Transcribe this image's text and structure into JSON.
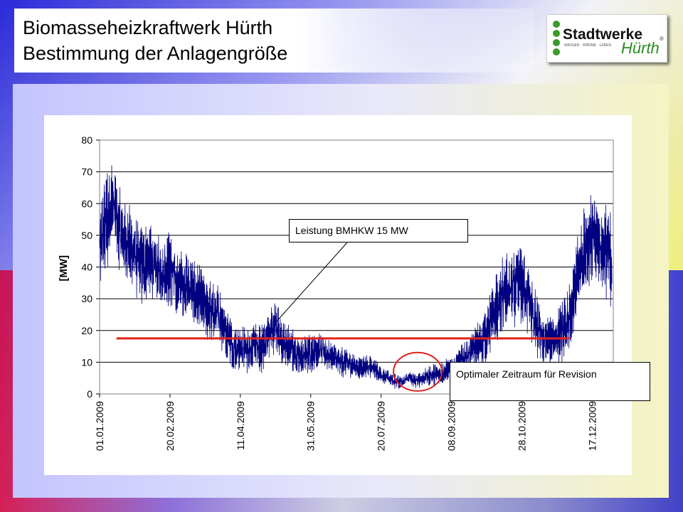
{
  "header": {
    "title_line1": "Biomasseheizkraftwerk Hürth",
    "title_line2": "Bestimmung der Anlagengröße"
  },
  "logo": {
    "text_main": "Stadtwerke",
    "text_script": "Hürth",
    "tagline": "WASSER · WÄRME · LEBEN",
    "registered": "®",
    "colors": {
      "green": "#3a9a2a",
      "dark": "#111111",
      "script": "#2a8a1e"
    }
  },
  "chart_data": {
    "type": "line",
    "ylabel": "[MW]",
    "ylim": [
      0,
      80
    ],
    "yticks": [
      "0",
      "10",
      "20",
      "30",
      "40",
      "50",
      "60",
      "70",
      "80"
    ],
    "xticks": [
      "01.01.2009",
      "20.02.2009",
      "11.04.2009",
      "31.05.2009",
      "20.07.2009",
      "08.09.2009",
      "28.10.2009",
      "17.12.2009"
    ],
    "grid": true,
    "series": [
      {
        "color": "#000080",
        "points": [
          [
            0,
            45
          ],
          [
            5,
            55
          ],
          [
            10,
            60
          ],
          [
            15,
            50
          ],
          [
            20,
            48
          ],
          [
            25,
            44
          ],
          [
            30,
            40
          ],
          [
            35,
            42
          ],
          [
            40,
            39
          ],
          [
            45,
            38
          ],
          [
            50,
            40
          ],
          [
            55,
            35
          ],
          [
            60,
            34
          ],
          [
            65,
            33
          ],
          [
            70,
            30
          ],
          [
            75,
            27
          ],
          [
            80,
            26
          ],
          [
            85,
            25
          ],
          [
            90,
            20
          ],
          [
            95,
            15
          ],
          [
            100,
            14
          ],
          [
            105,
            14
          ],
          [
            110,
            15
          ],
          [
            115,
            14
          ],
          [
            120,
            19
          ],
          [
            125,
            22
          ],
          [
            130,
            16
          ],
          [
            135,
            14
          ],
          [
            140,
            13
          ],
          [
            145,
            12
          ],
          [
            150,
            13
          ],
          [
            155,
            14
          ],
          [
            160,
            13
          ],
          [
            165,
            12
          ],
          [
            170,
            10
          ],
          [
            175,
            10
          ],
          [
            180,
            9
          ],
          [
            185,
            8
          ],
          [
            190,
            9
          ],
          [
            195,
            8
          ],
          [
            200,
            6
          ],
          [
            205,
            5
          ],
          [
            210,
            4
          ],
          [
            215,
            4
          ],
          [
            220,
            5
          ],
          [
            225,
            4
          ],
          [
            230,
            5
          ],
          [
            235,
            6
          ],
          [
            240,
            6
          ],
          [
            245,
            7
          ],
          [
            250,
            8
          ],
          [
            255,
            10
          ],
          [
            260,
            12
          ],
          [
            265,
            14
          ],
          [
            270,
            16
          ],
          [
            275,
            19
          ],
          [
            280,
            25
          ],
          [
            285,
            30
          ],
          [
            290,
            32
          ],
          [
            295,
            34
          ],
          [
            300,
            35
          ],
          [
            305,
            30
          ],
          [
            310,
            22
          ],
          [
            315,
            17
          ],
          [
            320,
            16
          ],
          [
            325,
            18
          ],
          [
            330,
            20
          ],
          [
            335,
            25
          ],
          [
            340,
            38
          ],
          [
            345,
            47
          ],
          [
            350,
            50
          ],
          [
            355,
            47
          ],
          [
            360,
            45
          ],
          [
            364,
            42
          ]
        ],
        "amplitude": [
          12,
          14,
          12,
          11,
          11,
          10,
          11,
          10,
          10,
          9,
          10,
          9,
          9,
          8,
          9,
          8,
          8,
          8,
          7,
          6,
          6,
          6,
          6,
          6,
          7,
          7,
          6,
          6,
          5,
          5,
          5,
          5,
          5,
          4,
          4,
          4,
          3,
          3,
          3,
          3,
          2,
          2,
          2,
          2,
          2,
          2,
          2,
          3,
          3,
          3,
          3,
          4,
          4,
          5,
          6,
          7,
          8,
          10,
          10,
          10,
          11,
          10,
          8,
          7,
          7,
          7,
          8,
          9,
          11,
          11,
          12,
          11,
          12,
          12
        ]
      }
    ],
    "reference_line": {
      "value": 17.5,
      "x_start": 12,
      "x_end": 334,
      "color": "#e0201a"
    },
    "annotations": [
      {
        "id": "bmhkw",
        "text": "Leistung BMHKW 15 MW",
        "points_to": {
          "day": 126,
          "value": 23
        }
      },
      {
        "id": "revision",
        "text": "Optimaler Zeitraum für Revision",
        "circle_center": {
          "day": 226,
          "value": 7
        }
      }
    ]
  }
}
